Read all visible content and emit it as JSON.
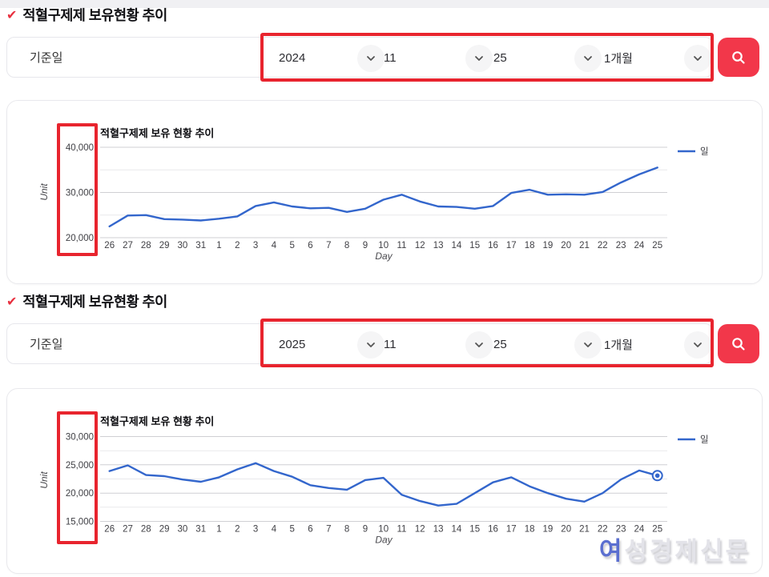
{
  "colors": {
    "annotation_red": "#e8242e",
    "button_red": "#f2374a",
    "line_blue": "#3366cc",
    "checkmark_red": "#e8303f"
  },
  "icons": {
    "checkmark": "✔",
    "chevron_down": "chevron-down",
    "search": "magnifier"
  },
  "sections": [
    {
      "title": "적혈구제제 보유현황 추이",
      "filter": {
        "label": "기준일",
        "year": "2024",
        "month": "11",
        "day": "25",
        "period": "1개월"
      }
    },
    {
      "title": "적혈구제제 보유현황 추이",
      "filter": {
        "label": "기준일",
        "year": "2025",
        "month": "11",
        "day": "25",
        "period": "1개월"
      }
    }
  ],
  "chart_data": [
    {
      "type": "line",
      "title": "적혈구제제 보유 현황 추이",
      "xlabel": "Day",
      "ylabel": "Unit",
      "legend": "일",
      "legend_position": "right",
      "grid": true,
      "line_color": "#3366cc",
      "categories": [
        "26",
        "27",
        "28",
        "29",
        "30",
        "31",
        "1",
        "2",
        "3",
        "4",
        "5",
        "6",
        "7",
        "8",
        "9",
        "10",
        "11",
        "12",
        "13",
        "14",
        "15",
        "16",
        "17",
        "18",
        "19",
        "20",
        "21",
        "22",
        "23",
        "24",
        "25"
      ],
      "values": [
        22500,
        24900,
        25000,
        24100,
        24000,
        23800,
        24200,
        24700,
        27000,
        27800,
        26900,
        26500,
        26600,
        25700,
        26400,
        28400,
        29500,
        28000,
        26900,
        26800,
        26400,
        27000,
        29900,
        30600,
        29500,
        29600,
        29500,
        30100,
        32200,
        34000,
        35500
      ],
      "ylim": [
        20000,
        40000
      ],
      "grid_step": 5000,
      "y_ticks": [
        {
          "value": 20000,
          "label": "20,000"
        },
        {
          "value": 30000,
          "label": "30,000"
        },
        {
          "value": 40000,
          "label": "40,000"
        }
      ],
      "end_marker": false
    },
    {
      "type": "line",
      "title": "적혈구제제 보유 현황 추이",
      "xlabel": "Day",
      "ylabel": "Unit",
      "legend": "일",
      "legend_position": "right",
      "grid": true,
      "line_color": "#3366cc",
      "categories": [
        "26",
        "27",
        "28",
        "29",
        "30",
        "31",
        "1",
        "2",
        "3",
        "4",
        "5",
        "6",
        "7",
        "8",
        "9",
        "10",
        "11",
        "12",
        "13",
        "14",
        "15",
        "16",
        "17",
        "18",
        "19",
        "20",
        "21",
        "22",
        "23",
        "24",
        "25"
      ],
      "values": [
        23900,
        24900,
        23200,
        23000,
        22400,
        22000,
        22800,
        24200,
        25300,
        23900,
        22900,
        21400,
        20900,
        20600,
        22300,
        22700,
        19700,
        18600,
        17800,
        18100,
        20000,
        21900,
        22800,
        21200,
        20000,
        19000,
        18500,
        20000,
        22400,
        24000,
        23100
      ],
      "ylim": [
        15000,
        30000
      ],
      "grid_step": 2500,
      "y_ticks": [
        {
          "value": 15000,
          "label": "15,000"
        },
        {
          "value": 20000,
          "label": "20,000"
        },
        {
          "value": 25000,
          "label": "25,000"
        },
        {
          "value": 30000,
          "label": "30,000"
        }
      ],
      "end_marker": true
    }
  ],
  "watermark": {
    "text": "여성경제신문"
  }
}
